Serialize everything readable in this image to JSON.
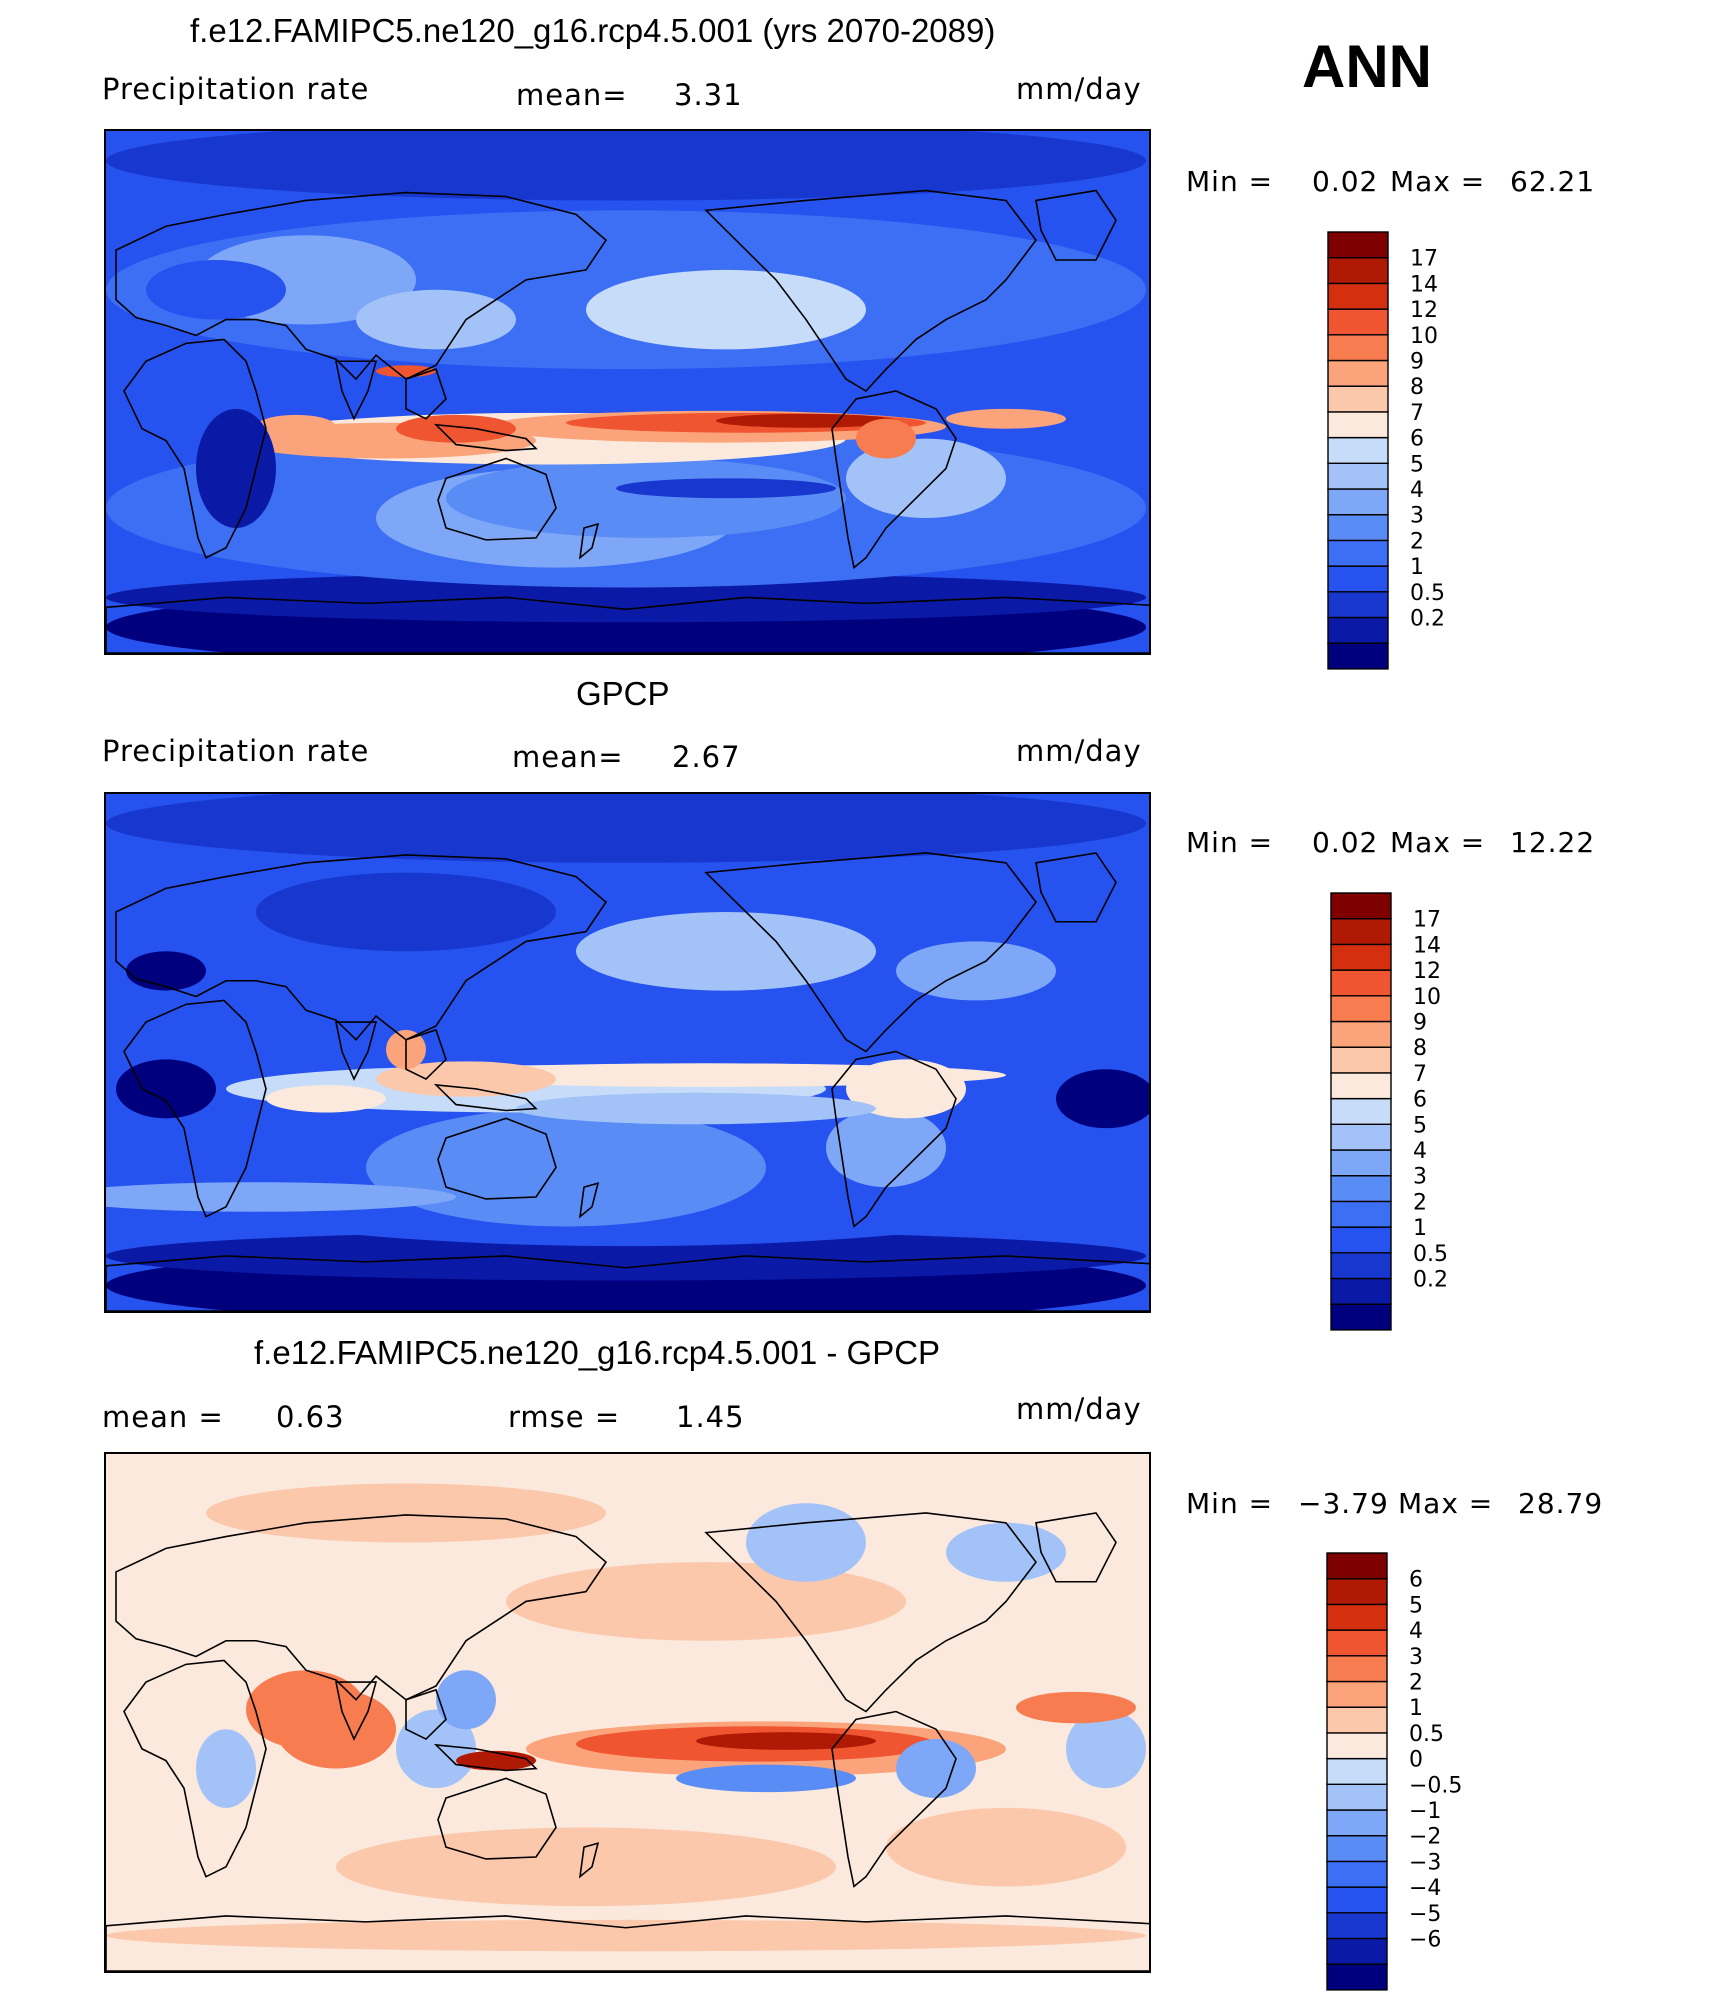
{
  "header": {
    "season": "ANN"
  },
  "colors": {
    "precip_scale": [
      "#00007f",
      "#0a1aa6",
      "#1737cf",
      "#2652ef",
      "#3c6ff4",
      "#5a8cf5",
      "#7ea8f7",
      "#a3c3f8",
      "#c6dcf9",
      "#fbe9dd",
      "#fcc8ac",
      "#fba47b",
      "#f77c4f",
      "#ee5530",
      "#d4300f",
      "#b01a05",
      "#7f0000"
    ],
    "diff_scale": [
      "#00007f",
      "#0a1aa6",
      "#1737cf",
      "#2652ef",
      "#3c6ff4",
      "#5a8cf5",
      "#7ea8f7",
      "#a3c3f8",
      "#c6dcf9",
      "#fbe9dd",
      "#fcc8ac",
      "#fba47b",
      "#f77c4f",
      "#ee5530",
      "#d4300f",
      "#b01a05",
      "#7f0000"
    ]
  },
  "chart_data": [
    {
      "type": "heatmap",
      "title": "f.e12.FAMIPC5.ne120_g16.rcp4.5.001 (yrs 2070-2089)",
      "variable": "Precipitation rate",
      "mean_label": "mean=",
      "mean_value": "3.31",
      "units": "mm/day",
      "min_label": "Min =",
      "min_value": "0.02",
      "max_label": "Max =",
      "max_value": "62.21",
      "colorbar_levels": [
        "17",
        "14",
        "12",
        "10",
        "9",
        "8",
        "7",
        "6",
        "5",
        "4",
        "3",
        "2",
        "1",
        "0.5",
        "0.2"
      ]
    },
    {
      "type": "heatmap",
      "title": "GPCP",
      "variable": "Precipitation rate",
      "mean_label": "mean=",
      "mean_value": "2.67",
      "units": "mm/day",
      "min_label": "Min =",
      "min_value": "0.02",
      "max_label": "Max =",
      "max_value": "12.22",
      "colorbar_levels": [
        "17",
        "14",
        "12",
        "10",
        "9",
        "8",
        "7",
        "6",
        "5",
        "4",
        "3",
        "2",
        "1",
        "0.5",
        "0.2"
      ]
    },
    {
      "type": "heatmap",
      "title": "f.e12.FAMIPC5.ne120_g16.rcp4.5.001 - GPCP",
      "mean_label": "mean =",
      "mean_value": "0.63",
      "rmse_label": "rmse =",
      "rmse_value": "1.45",
      "units": "mm/day",
      "min_label": "Min =",
      "min_value": "−3.79",
      "max_label": "Max =",
      "max_value": "28.79",
      "colorbar_levels": [
        "6",
        "5",
        "4",
        "3",
        "2",
        "1",
        "0.5",
        "0",
        "−0.5",
        "−1",
        "−2",
        "−3",
        "−4",
        "−5",
        "−6"
      ]
    }
  ]
}
